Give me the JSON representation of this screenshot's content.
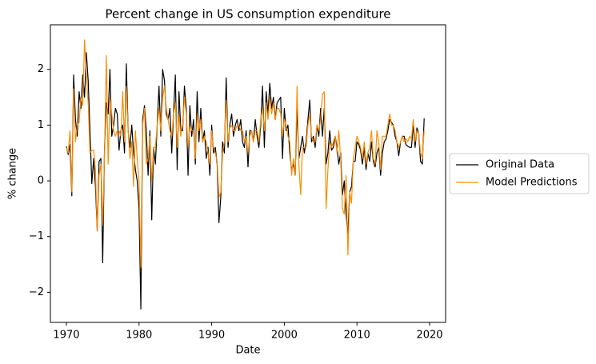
{
  "chart_data": {
    "type": "line",
    "title": "Percent change in US consumption expenditure",
    "x_label": "Date",
    "y_label": "% change",
    "xlim": [
      1967.8,
      2022.2
    ],
    "ylim": [
      -2.54,
      2.8
    ],
    "xticks": [
      1970,
      1980,
      1990,
      2000,
      2010,
      2020
    ],
    "yticks": [
      {
        "value": -2,
        "label": "−2"
      },
      {
        "value": -1,
        "label": "−1"
      },
      0,
      1,
      2
    ],
    "grid": false,
    "legend_loc": "outside right",
    "x": [
      1970,
      1970.25,
      1970.5,
      1970.75,
      1971,
      1971.25,
      1971.5,
      1971.75,
      1972,
      1972.25,
      1972.5,
      1972.75,
      1973,
      1973.25,
      1973.5,
      1973.75,
      1974,
      1974.25,
      1974.5,
      1974.75,
      1975,
      1975.25,
      1975.5,
      1975.75,
      1976,
      1976.25,
      1976.5,
      1976.75,
      1977,
      1977.25,
      1977.5,
      1977.75,
      1978,
      1978.25,
      1978.5,
      1978.75,
      1979,
      1979.25,
      1979.5,
      1979.75,
      1980,
      1980.25,
      1980.5,
      1980.75,
      1981,
      1981.25,
      1981.5,
      1981.75,
      1982,
      1982.25,
      1982.5,
      1982.75,
      1983,
      1983.25,
      1983.5,
      1983.75,
      1984,
      1984.25,
      1984.5,
      1984.75,
      1985,
      1985.25,
      1985.5,
      1985.75,
      1986,
      1986.25,
      1986.5,
      1986.75,
      1987,
      1987.25,
      1987.5,
      1987.75,
      1988,
      1988.25,
      1988.5,
      1988.75,
      1989,
      1989.25,
      1989.5,
      1989.75,
      1990,
      1990.25,
      1990.5,
      1990.75,
      1991,
      1991.25,
      1991.5,
      1991.75,
      1992,
      1992.25,
      1992.5,
      1992.75,
      1993,
      1993.25,
      1993.5,
      1993.75,
      1994,
      1994.25,
      1994.5,
      1994.75,
      1995,
      1995.25,
      1995.5,
      1995.75,
      1996,
      1996.25,
      1996.5,
      1996.75,
      1997,
      1997.25,
      1997.5,
      1997.75,
      1998,
      1998.25,
      1998.5,
      1998.75,
      1999,
      1999.25,
      1999.5,
      1999.75,
      2000,
      2000.25,
      2000.5,
      2000.75,
      2001,
      2001.25,
      2001.5,
      2001.75,
      2002,
      2002.25,
      2002.5,
      2002.75,
      2003,
      2003.25,
      2003.5,
      2003.75,
      2004,
      2004.25,
      2004.5,
      2004.75,
      2005,
      2005.25,
      2005.5,
      2005.75,
      2006,
      2006.25,
      2006.5,
      2006.75,
      2007,
      2007.25,
      2007.5,
      2007.75,
      2008,
      2008.25,
      2008.5,
      2008.75,
      2009,
      2009.25,
      2009.5,
      2009.75,
      2010,
      2010.25,
      2010.5,
      2010.75,
      2011,
      2011.25,
      2011.5,
      2011.75,
      2012,
      2012.25,
      2012.5,
      2012.75,
      2013,
      2013.25,
      2013.5,
      2013.75,
      2014,
      2014.25,
      2014.5,
      2014.75,
      2015,
      2015.25,
      2015.5,
      2015.75,
      2016,
      2016.25,
      2016.5,
      2016.75,
      2017,
      2017.25,
      2017.5,
      2017.75,
      2018,
      2018.25,
      2018.5,
      2018.75,
      2019,
      2019.25
    ],
    "series": [
      {
        "name": "Original Data",
        "color": "#000000",
        "values": [
          0.62,
          0.47,
          0.65,
          -0.27,
          1.9,
          1.1,
          0.8,
          1.6,
          1.3,
          1.9,
          1.5,
          2.3,
          1.8,
          0.9,
          -0.05,
          0.4,
          -0.1,
          -0.9,
          0.35,
          0.4,
          -1.47,
          0.6,
          1.4,
          1.2,
          2.0,
          0.8,
          1.0,
          1.3,
          1.2,
          0.55,
          0.9,
          1.0,
          0.5,
          2.1,
          0.9,
          0.6,
          1.0,
          0.5,
          0.2,
          0.0,
          -0.5,
          -2.3,
          1.1,
          1.35,
          0.9,
          0.1,
          0.9,
          -0.7,
          0.6,
          0.3,
          1.0,
          1.7,
          0.8,
          2.0,
          1.8,
          1.2,
          1.1,
          1.3,
          0.5,
          1.2,
          1.9,
          0.2,
          1.6,
          0.9,
          0.9,
          1.7,
          1.3,
          0.1,
          1.35,
          0.8,
          1.1,
          0.3,
          1.6,
          0.7,
          1.3,
          0.7,
          0.9,
          0.4,
          0.6,
          0.1,
          1.0,
          0.5,
          0.6,
          0.3,
          -0.75,
          -0.3,
          0.7,
          0.5,
          1.85,
          0.6,
          1.0,
          1.2,
          0.8,
          1.0,
          1.1,
          0.9,
          1.1,
          0.7,
          0.6,
          0.9,
          0.25,
          0.9,
          0.9,
          0.7,
          1.1,
          0.8,
          0.6,
          1.0,
          1.7,
          0.6,
          1.6,
          1.2,
          1.75,
          1.3,
          1.5,
          1.1,
          1.4,
          1.45,
          1.5,
          0.4,
          1.3,
          0.9,
          1.0,
          0.5,
          0.2,
          0.3,
          0.1,
          1.3,
          0.4,
          0.6,
          0.8,
          0.5,
          0.7,
          1.1,
          1.45,
          0.7,
          0.8,
          0.6,
          1.0,
          0.8,
          1.3,
          0.8,
          1.3,
          0.3,
          0.5,
          0.9,
          0.55,
          0.6,
          0.8,
          0.6,
          0.3,
          0.5,
          -0.25,
          0.0,
          -0.6,
          -0.95,
          -0.2,
          -0.1,
          0.35,
          0.35,
          0.7,
          0.65,
          0.55,
          0.3,
          0.6,
          0.2,
          0.5,
          0.35,
          0.7,
          0.35,
          0.25,
          0.5,
          0.6,
          0.1,
          0.5,
          0.7,
          0.75,
          0.9,
          1.1,
          1.05,
          1.0,
          0.8,
          0.7,
          0.45,
          0.7,
          0.8,
          0.8,
          0.65,
          0.62,
          0.6,
          0.6,
          1.0,
          0.6,
          0.95,
          0.85,
          0.35,
          0.3,
          1.12
        ]
      },
      {
        "name": "Model Predictions",
        "color": "#ff8c00",
        "values": [
          0.6,
          0.5,
          0.9,
          -0.2,
          1.65,
          0.7,
          1.0,
          1.05,
          1.5,
          1.35,
          2.53,
          1.9,
          1.4,
          0.5,
          0.55,
          0.55,
          0.2,
          -0.9,
          0.1,
          0.3,
          -0.8,
          0.5,
          2.25,
          0.3,
          1.5,
          1.2,
          0.9,
          0.8,
          0.9,
          0.9,
          0.8,
          1.6,
          0.7,
          1.7,
          0.9,
          0.4,
          0.7,
          -0.1,
          0.9,
          0.4,
          0.0,
          -1.55,
          1.0,
          1.3,
          0.3,
          0.4,
          0.8,
          0.0,
          0.6,
          0.6,
          1.0,
          1.3,
          0.9,
          1.5,
          1.7,
          1.3,
          1.1,
          0.9,
          0.8,
          1.2,
          1.4,
          0.6,
          1.2,
          0.8,
          1.0,
          1.5,
          1.2,
          0.6,
          1.0,
          0.9,
          0.9,
          0.4,
          1.2,
          0.9,
          1.1,
          0.7,
          0.8,
          0.7,
          0.5,
          0.3,
          0.9,
          0.6,
          0.5,
          0.35,
          -0.3,
          -0.2,
          0.5,
          0.7,
          1.45,
          0.7,
          0.95,
          1.0,
          0.9,
          0.9,
          1.0,
          1.0,
          0.9,
          0.9,
          0.7,
          0.8,
          0.5,
          0.8,
          0.9,
          0.7,
          0.9,
          0.9,
          0.7,
          1.1,
          1.3,
          0.9,
          1.4,
          1.1,
          1.5,
          1.2,
          1.4,
          1.1,
          1.3,
          1.3,
          1.2,
          0.8,
          1.1,
          1.0,
          0.8,
          0.7,
          0.1,
          0.4,
          0.1,
          1.7,
          0.3,
          -0.25,
          0.6,
          0.6,
          0.6,
          1.0,
          1.2,
          0.8,
          0.7,
          0.7,
          1.0,
          0.9,
          1.1,
          1.55,
          1.6,
          -0.5,
          0.2,
          0.7,
          0.6,
          0.7,
          0.8,
          0.5,
          0.9,
          0.4,
          -0.5,
          -0.6,
          0.1,
          -1.33,
          -0.2,
          -0.4,
          0.4,
          0.6,
          0.8,
          0.7,
          0.6,
          0.4,
          0.7,
          0.3,
          0.5,
          0.6,
          0.9,
          0.4,
          0.3,
          0.9,
          0.7,
          0.2,
          0.8,
          0.8,
          0.8,
          1.0,
          1.2,
          1.0,
          1.0,
          0.9,
          0.7,
          0.6,
          0.7,
          0.8,
          0.7,
          0.75,
          0.7,
          0.8,
          0.75,
          1.1,
          0.7,
          0.9,
          0.85,
          0.5,
          0.4,
          0.9
        ]
      }
    ]
  }
}
